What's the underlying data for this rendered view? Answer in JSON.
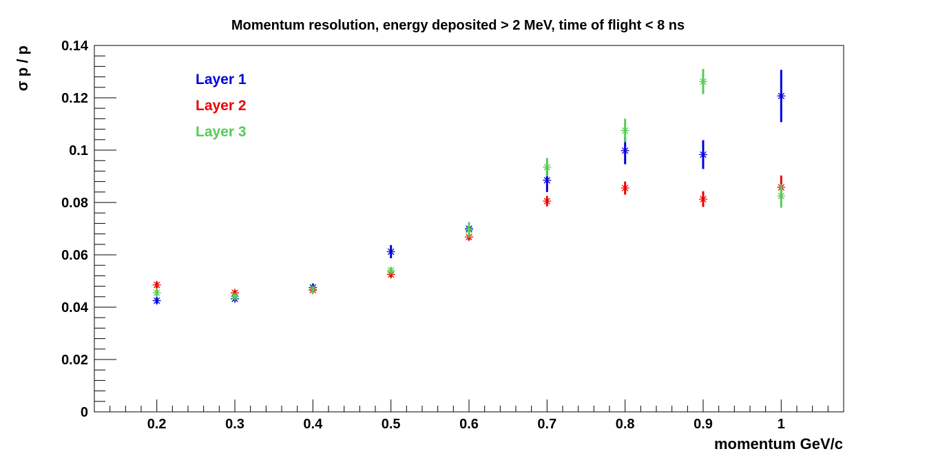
{
  "chart_data": {
    "type": "scatter",
    "title": "Momentum resolution, energy deposited > 2 MeV, time of flight < 8 ns",
    "xlabel": "momentum GeV/c",
    "ylabel": "σ p / p",
    "xlim": [
      0.12,
      1.08
    ],
    "ylim": [
      0,
      0.14
    ],
    "xticks": [
      0.2,
      0.3,
      0.4,
      0.5,
      0.6,
      0.7,
      0.8,
      0.9,
      1.0
    ],
    "xtick_labels": [
      "0.2",
      "0.3",
      "0.4",
      "0.5",
      "0.6",
      "0.7",
      "0.8",
      "0.9",
      "1"
    ],
    "yticks": [
      0,
      0.02,
      0.04,
      0.06,
      0.08,
      0.1,
      0.12,
      0.14
    ],
    "ytick_labels": [
      "0",
      "0.02",
      "0.04",
      "0.06",
      "0.08",
      "0.1",
      "0.12",
      "0.14"
    ],
    "grid": false,
    "legend_position": "top-left",
    "series": [
      {
        "name": "Layer 1",
        "color": "#0000dd",
        "x": [
          0.2,
          0.3,
          0.4,
          0.5,
          0.6,
          0.7,
          0.8,
          0.9,
          1.0
        ],
        "y": [
          0.0425,
          0.0432,
          0.0475,
          0.0612,
          0.07,
          0.0885,
          0.0998,
          0.0983,
          0.1207
        ],
        "yerr": [
          0.0012,
          0.001,
          0.0015,
          0.0025,
          0.0018,
          0.0045,
          0.0052,
          0.0055,
          0.01
        ]
      },
      {
        "name": "Layer 2",
        "color": "#ee0000",
        "x": [
          0.2,
          0.3,
          0.4,
          0.5,
          0.6,
          0.7,
          0.8,
          0.9,
          1.0
        ],
        "y": [
          0.0485,
          0.0455,
          0.0465,
          0.0525,
          0.0668,
          0.0805,
          0.0855,
          0.0813,
          0.0858
        ],
        "yerr": [
          0.0012,
          0.001,
          0.001,
          0.0012,
          0.0012,
          0.002,
          0.0025,
          0.003,
          0.0045
        ]
      },
      {
        "name": "Layer 3",
        "color": "#55cc55",
        "x": [
          0.2,
          0.3,
          0.4,
          0.5,
          0.6,
          0.7,
          0.8,
          0.9,
          1.0
        ],
        "y": [
          0.0455,
          0.044,
          0.0468,
          0.054,
          0.0695,
          0.0935,
          0.1075,
          0.1262,
          0.0825
        ],
        "yerr": [
          0.0015,
          0.0012,
          0.0012,
          0.0012,
          0.003,
          0.0035,
          0.0045,
          0.0048,
          0.0045
        ]
      }
    ]
  }
}
